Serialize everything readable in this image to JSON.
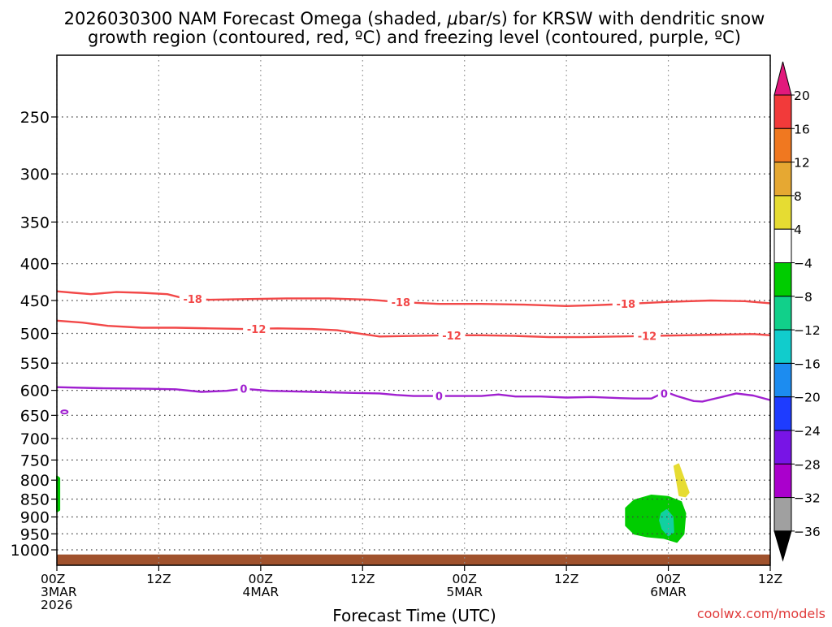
{
  "chart_data": {
    "type": "time-height cross section",
    "title_line1": "2026030300 NAM Forecast Omega (shaded, ",
    "title_mu": "μ",
    "title_line1_end": "bar/s) for KRSW with dendritic snow",
    "title_line2": "growth region (contoured, red, ºC) and freezing level (contoured, purple, ºC)",
    "xlabel": "Forecast Time (UTC)",
    "credit": "coolwx.com/models",
    "xlim_hours": [
      0,
      84
    ],
    "ylim_hpa": [
      1000,
      200
    ],
    "x_ticks": [
      {
        "hour": 0,
        "line1": "00Z",
        "line2": "3MAR",
        "line3": "2026"
      },
      {
        "hour": 12,
        "line1": "12Z",
        "line2": "",
        "line3": ""
      },
      {
        "hour": 24,
        "line1": "00Z",
        "line2": "4MAR",
        "line3": ""
      },
      {
        "hour": 36,
        "line1": "12Z",
        "line2": "",
        "line3": ""
      },
      {
        "hour": 48,
        "line1": "00Z",
        "line2": "5MAR",
        "line3": ""
      },
      {
        "hour": 60,
        "line1": "12Z",
        "line2": "",
        "line3": ""
      },
      {
        "hour": 72,
        "line1": "00Z",
        "line2": "6MAR",
        "line3": ""
      },
      {
        "hour": 84,
        "line1": "12Z",
        "line2": "",
        "line3": ""
      }
    ],
    "y_ticks": [
      {
        "p": 250,
        "label": "250"
      },
      {
        "p": 300,
        "label": "300"
      },
      {
        "p": 350,
        "label": "350"
      },
      {
        "p": 400,
        "label": "400"
      },
      {
        "p": 450,
        "label": "450"
      },
      {
        "p": 500,
        "label": "500"
      },
      {
        "p": 550,
        "label": "550"
      },
      {
        "p": 600,
        "label": "600"
      },
      {
        "p": 650,
        "label": "650"
      },
      {
        "p": 700,
        "label": "700"
      },
      {
        "p": 750,
        "label": "750"
      },
      {
        "p": 800,
        "label": "800"
      },
      {
        "p": 850,
        "label": "850"
      },
      {
        "p": 900,
        "label": "900"
      },
      {
        "p": 950,
        "label": "950"
      },
      {
        "p": 1000,
        "label": "1000"
      }
    ],
    "contours": [
      {
        "name": "-18C isotherm",
        "color": "#f24848",
        "label": "-18",
        "label_hours": [
          16,
          40.5,
          67
        ],
        "points": [
          [
            0,
            437
          ],
          [
            2,
            439
          ],
          [
            4,
            441
          ],
          [
            7,
            438
          ],
          [
            10,
            439
          ],
          [
            13,
            441
          ],
          [
            15,
            447
          ],
          [
            18,
            449
          ],
          [
            22,
            448
          ],
          [
            27,
            447
          ],
          [
            32,
            447
          ],
          [
            37,
            449
          ],
          [
            40,
            452
          ],
          [
            45,
            455
          ],
          [
            50,
            455
          ],
          [
            55,
            456
          ],
          [
            60,
            458
          ],
          [
            63,
            457
          ],
          [
            67,
            455
          ],
          [
            72,
            452
          ],
          [
            77,
            450
          ],
          [
            81,
            451
          ],
          [
            84,
            454
          ]
        ]
      },
      {
        "name": "-12C isotherm",
        "color": "#f24848",
        "label": "-12",
        "label_hours": [
          23.5,
          46.5,
          69.5
        ],
        "points": [
          [
            0,
            480
          ],
          [
            3,
            483
          ],
          [
            6,
            488
          ],
          [
            10,
            491
          ],
          [
            14,
            491
          ],
          [
            18,
            492
          ],
          [
            22,
            493
          ],
          [
            26,
            492
          ],
          [
            30,
            493
          ],
          [
            33,
            495
          ],
          [
            36,
            501
          ],
          [
            38,
            505
          ],
          [
            42,
            504
          ],
          [
            46,
            503
          ],
          [
            50,
            503
          ],
          [
            54,
            504
          ],
          [
            58,
            506
          ],
          [
            62,
            506
          ],
          [
            66,
            505
          ],
          [
            70,
            504
          ],
          [
            74,
            503
          ],
          [
            78,
            502
          ],
          [
            82,
            501
          ],
          [
            84,
            503
          ]
        ]
      },
      {
        "name": "0C freezing level",
        "color": "#a020d0",
        "label": "0",
        "label_hours": [
          22,
          45,
          71.5
        ],
        "points": [
          [
            0,
            594
          ],
          [
            5,
            596
          ],
          [
            11,
            597
          ],
          [
            14,
            598
          ],
          [
            17,
            603
          ],
          [
            20,
            601
          ],
          [
            22,
            597
          ],
          [
            25,
            601
          ],
          [
            30,
            603
          ],
          [
            35,
            605
          ],
          [
            38,
            606
          ],
          [
            40,
            609
          ],
          [
            42,
            611
          ],
          [
            45,
            611
          ],
          [
            48,
            611
          ],
          [
            50,
            611
          ],
          [
            52,
            608
          ],
          [
            54,
            612
          ],
          [
            57,
            612
          ],
          [
            60,
            614
          ],
          [
            63,
            613
          ],
          [
            66,
            615
          ],
          [
            68,
            616
          ],
          [
            70,
            616
          ],
          [
            71,
            608
          ],
          [
            72,
            605
          ],
          [
            73,
            611
          ],
          [
            75,
            621
          ],
          [
            76,
            622
          ],
          [
            78,
            614
          ],
          [
            80,
            606
          ],
          [
            82,
            610
          ],
          [
            84,
            619
          ]
        ]
      }
    ],
    "small_contour": {
      "name": "0C closed contour",
      "color": "#a020d0",
      "hour": 0.7,
      "p": 643
    },
    "omega_shading": [
      {
        "name": "omega -4 to -8 region",
        "range": "-8 to -4",
        "color": "#00cc00",
        "points": [
          [
            67,
            875
          ],
          [
            68,
            853
          ],
          [
            70,
            840
          ],
          [
            72,
            844
          ],
          [
            73.5,
            858
          ],
          [
            74,
            890
          ],
          [
            73.8,
            950
          ],
          [
            73,
            975
          ],
          [
            71.5,
            963
          ],
          [
            69.5,
            958
          ],
          [
            68,
            950
          ],
          [
            67,
            925
          ]
        ]
      },
      {
        "name": "omega -8 to -12 region",
        "range": "-12 to -8",
        "color": "#11d0a0",
        "points": [
          [
            71.2,
            890
          ],
          [
            71.8,
            880
          ],
          [
            72.5,
            900
          ],
          [
            72.6,
            945
          ],
          [
            72,
            955
          ],
          [
            71.3,
            935
          ],
          [
            71,
            910
          ]
        ]
      },
      {
        "name": "omega 4 to 8 region",
        "range": "4 to 8",
        "color": "#e6dc32",
        "points": [
          [
            72.7,
            765
          ],
          [
            73.2,
            760
          ],
          [
            74.4,
            832
          ],
          [
            74,
            843
          ],
          [
            73.3,
            840
          ],
          [
            73,
            800
          ]
        ]
      },
      {
        "name": "omega -4 to -8 edge",
        "range": "-8 to -4",
        "color": "#00cc00",
        "points": [
          [
            0,
            790
          ],
          [
            0.3,
            795
          ],
          [
            0.3,
            880
          ],
          [
            0,
            885
          ]
        ]
      }
    ],
    "terrain": {
      "name": "surface ground",
      "color": "#a0522d",
      "p_top": 1015
    },
    "colorbar": {
      "labels": [
        "20",
        "16",
        "12",
        "8",
        "4",
        "−4",
        "−8",
        "−12",
        "−16",
        "−20",
        "−24",
        "−28",
        "−32",
        "−36"
      ],
      "top_color": "#e2197c",
      "bottom_color": "#000000",
      "colors": [
        "#f23a3a",
        "#f07820",
        "#e6a832",
        "#e6dc32",
        "#ffffff",
        "#00cc00",
        "#11d08a",
        "#11cccc",
        "#1c8cf0",
        "#1e3cff",
        "#7814e6",
        "#aa00cc",
        "#a0a0a0"
      ]
    }
  }
}
